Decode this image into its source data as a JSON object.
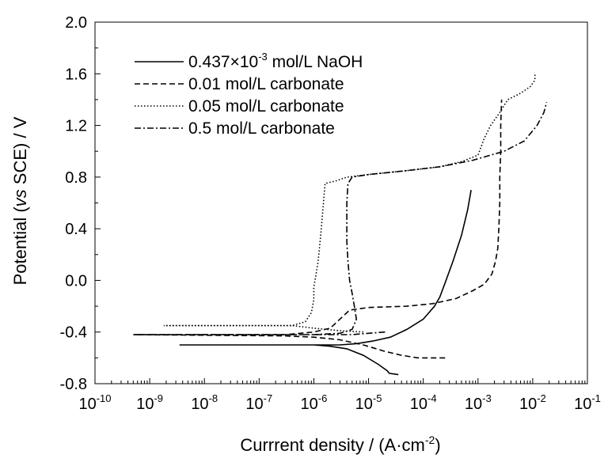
{
  "chart_data": {
    "type": "line",
    "title": "",
    "xlabel": {
      "prefix": "Currrent density / (A·cm",
      "exponent": "-2",
      "suffix": ")"
    },
    "ylabel": {
      "prefix": "Potential (",
      "italic": "vs",
      "suffix": " SCE) / V"
    },
    "x_scale": "log",
    "xlim": [
      1e-10,
      0.1
    ],
    "ylim": [
      -0.8,
      2.0
    ],
    "x_ticks": [
      {
        "base": "10",
        "exponent": "-10",
        "value": 1e-10
      },
      {
        "base": "10",
        "exponent": "-9",
        "value": 1e-09
      },
      {
        "base": "10",
        "exponent": "-8",
        "value": 1e-08
      },
      {
        "base": "10",
        "exponent": "-7",
        "value": 1e-07
      },
      {
        "base": "10",
        "exponent": "-6",
        "value": 1e-06
      },
      {
        "base": "10",
        "exponent": "-5",
        "value": 1e-05
      },
      {
        "base": "10",
        "exponent": "-4",
        "value": 0.0001
      },
      {
        "base": "10",
        "exponent": "-3",
        "value": 0.001
      },
      {
        "base": "10",
        "exponent": "-2",
        "value": 0.01
      },
      {
        "base": "10",
        "exponent": "-1",
        "value": 0.1
      }
    ],
    "y_ticks": [
      "-0.8",
      "-0.4",
      "0.0",
      "0.4",
      "0.8",
      "1.2",
      "1.6",
      "2.0"
    ],
    "grid": false,
    "legend_position": "top-left",
    "series": [
      {
        "name": "0.437×10-3 mol/L NaOH",
        "legend": {
          "prefix": "0.437×10",
          "exponent": "-3",
          "suffix": " mol/L NaOH"
        },
        "dash": "solid",
        "points": [
          [
            3.5e-05,
            -0.73
          ],
          [
            2.4e-05,
            -0.72
          ],
          [
            2.2e-05,
            -0.7
          ],
          [
            1.5e-05,
            -0.65
          ],
          [
            8e-06,
            -0.58
          ],
          [
            4e-06,
            -0.53
          ],
          [
            2e-06,
            -0.51
          ],
          [
            1e-06,
            -0.5
          ],
          [
            3.5e-09,
            -0.5
          ],
          [
            1e-06,
            -0.5
          ],
          [
            3e-06,
            -0.5
          ],
          [
            6e-06,
            -0.49
          ],
          [
            1.2e-05,
            -0.47
          ],
          [
            2.5e-05,
            -0.44
          ],
          [
            5e-05,
            -0.38
          ],
          [
            0.0001,
            -0.3
          ],
          [
            0.00016,
            -0.2
          ],
          [
            0.0002,
            -0.13
          ],
          [
            0.00025,
            -0.02
          ],
          [
            0.00035,
            0.15
          ],
          [
            0.0005,
            0.35
          ],
          [
            0.00065,
            0.55
          ],
          [
            0.00075,
            0.7
          ]
        ]
      },
      {
        "name": "0.01 mol/L carbonate",
        "dash": "dashed",
        "points": [
          [
            0.00025,
            -0.6
          ],
          [
            8e-05,
            -0.6
          ],
          [
            4e-05,
            -0.58
          ],
          [
            2e-05,
            -0.55
          ],
          [
            8e-06,
            -0.5
          ],
          [
            3e-06,
            -0.46
          ],
          [
            1e-06,
            -0.44
          ],
          [
            3e-07,
            -0.43
          ],
          [
            5e-10,
            -0.42
          ],
          [
            3e-07,
            -0.42
          ],
          [
            1e-06,
            -0.4
          ],
          [
            2e-06,
            -0.37
          ],
          [
            3e-06,
            -0.3
          ],
          [
            4.5e-06,
            -0.23
          ],
          [
            1e-05,
            -0.21
          ],
          [
            5e-05,
            -0.2
          ],
          [
            0.00015,
            -0.18
          ],
          [
            0.0004,
            -0.14
          ],
          [
            0.0008,
            -0.08
          ],
          [
            0.0013,
            -0.03
          ],
          [
            0.0018,
            0.05
          ],
          [
            0.0021,
            0.15
          ],
          [
            0.0023,
            0.25
          ],
          [
            0.0024,
            0.4
          ],
          [
            0.0025,
            0.6
          ],
          [
            0.0025,
            0.8
          ],
          [
            0.0026,
            1.0
          ],
          [
            0.0026,
            1.2
          ],
          [
            0.0027,
            1.4
          ]
        ]
      },
      {
        "name": "0.05 mol/L carbonate",
        "dash": "dotted",
        "points": [
          [
            8e-06,
            -0.4
          ],
          [
            3e-06,
            -0.39
          ],
          [
            1e-06,
            -0.37
          ],
          [
            4e-07,
            -0.35
          ],
          [
            1.8e-09,
            -0.35
          ],
          [
            4e-07,
            -0.35
          ],
          [
            7e-07,
            -0.32
          ],
          [
            9e-07,
            -0.25
          ],
          [
            1e-06,
            -0.15
          ],
          [
            1e-06,
            -0.05
          ],
          [
            1.1e-06,
            0.05
          ],
          [
            1.2e-06,
            0.15
          ],
          [
            1.3e-06,
            0.3
          ],
          [
            1.4e-06,
            0.45
          ],
          [
            1.5e-06,
            0.6
          ],
          [
            1.6e-06,
            0.75
          ],
          [
            2.5e-06,
            0.77
          ],
          [
            4e-06,
            0.8
          ],
          [
            1e-05,
            0.82
          ],
          [
            5e-05,
            0.85
          ],
          [
            0.0002,
            0.88
          ],
          [
            0.0005,
            0.92
          ],
          [
            0.001,
            0.97
          ],
          [
            0.0013,
            1.1
          ],
          [
            0.0017,
            1.2
          ],
          [
            0.0025,
            1.3
          ],
          [
            0.0035,
            1.4
          ],
          [
            0.006,
            1.45
          ],
          [
            0.009,
            1.5
          ],
          [
            0.011,
            1.55
          ],
          [
            0.011,
            1.6
          ]
        ]
      },
      {
        "name": "0.5 mol/L carbonate",
        "dash": "dashdot",
        "points": [
          [
            2e-05,
            -0.4
          ],
          [
            1e-05,
            -0.41
          ],
          [
            5e-06,
            -0.42
          ],
          [
            1e-06,
            -0.42
          ],
          [
            1e-07,
            -0.42
          ],
          [
            5e-10,
            -0.42
          ],
          [
            1e-06,
            -0.42
          ],
          [
            3e-06,
            -0.41
          ],
          [
            5e-06,
            -0.38
          ],
          [
            6e-06,
            -0.3
          ],
          [
            5.5e-06,
            -0.2
          ],
          [
            5e-06,
            -0.1
          ],
          [
            4.5e-06,
            0.0
          ],
          [
            4.2e-06,
            0.15
          ],
          [
            4e-06,
            0.3
          ],
          [
            4e-06,
            0.45
          ],
          [
            4e-06,
            0.6
          ],
          [
            4.2e-06,
            0.75
          ],
          [
            5e-06,
            0.8
          ],
          [
            1e-05,
            0.82
          ],
          [
            5e-05,
            0.85
          ],
          [
            0.0002,
            0.88
          ],
          [
            0.0008,
            0.93
          ],
          [
            0.003,
            1.0
          ],
          [
            0.007,
            1.08
          ],
          [
            0.012,
            1.2
          ],
          [
            0.016,
            1.3
          ],
          [
            0.018,
            1.38
          ]
        ]
      }
    ]
  }
}
